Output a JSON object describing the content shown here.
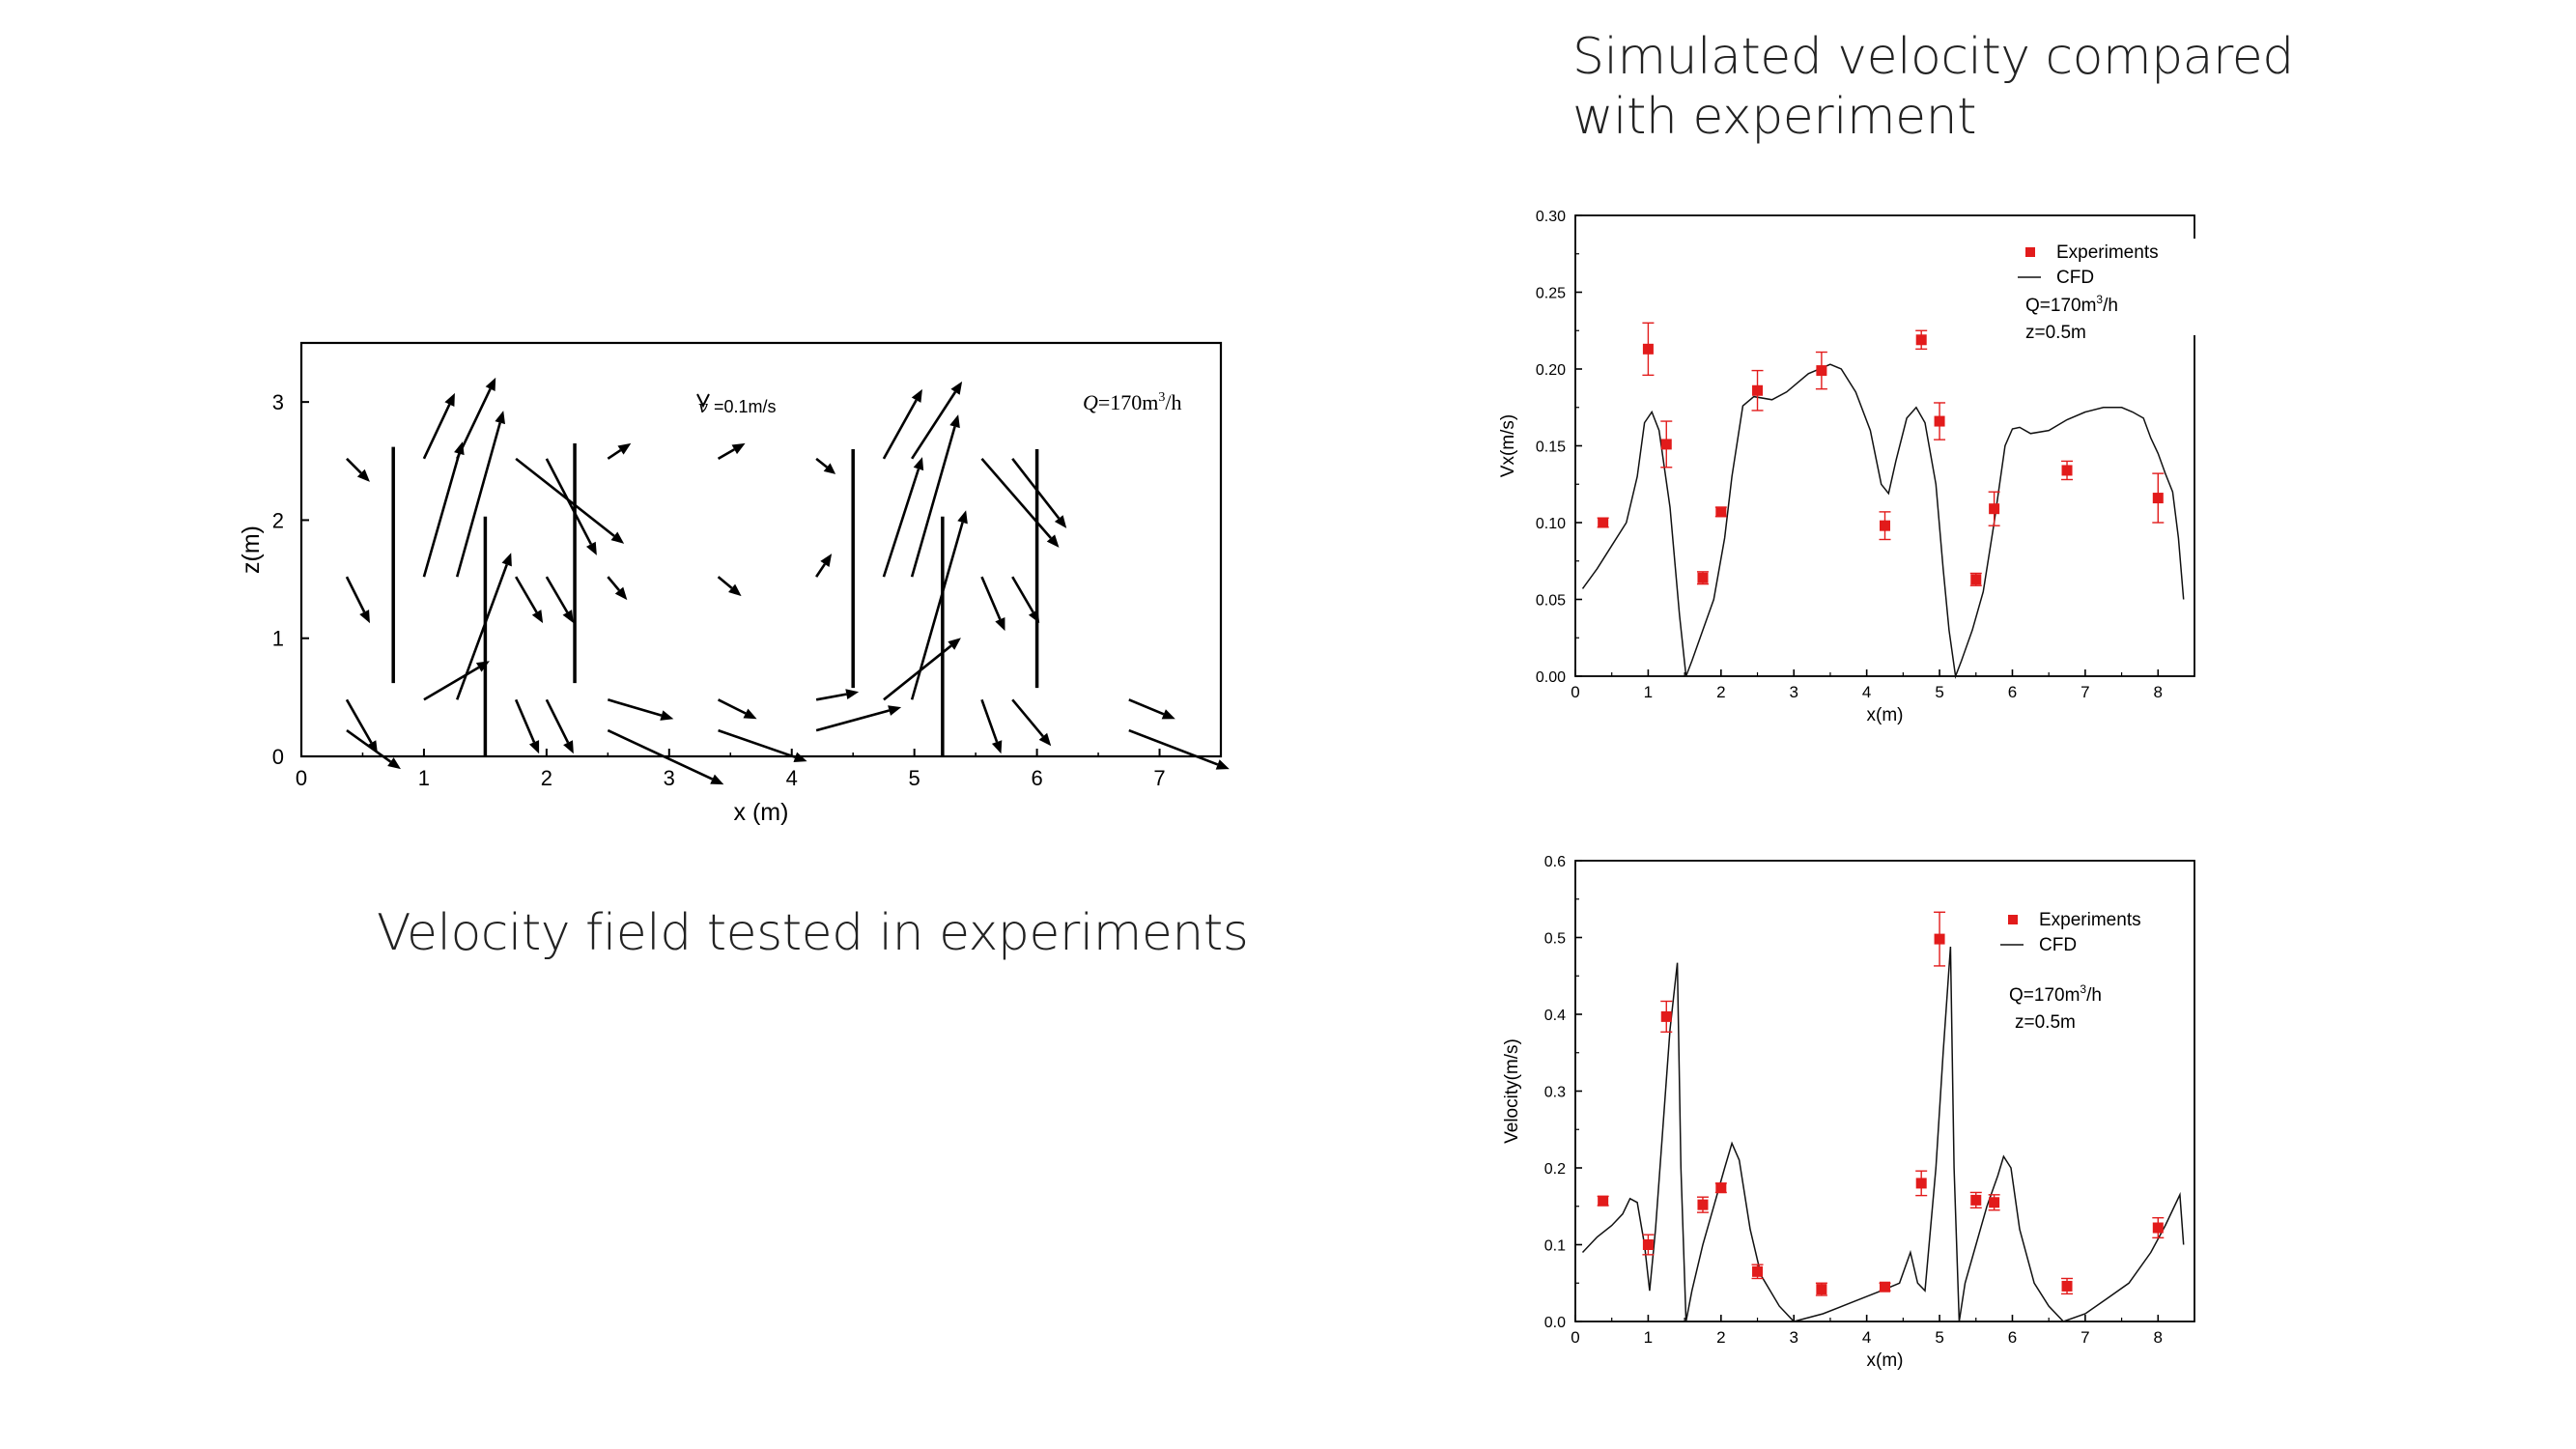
{
  "slide": {
    "right_title_line1": "Simulated velocity compared",
    "right_title_line2": "with experiment",
    "left_caption": "Velocity field tested in experiments"
  },
  "chart_data": [
    {
      "type": "scatter",
      "subtype": "vector-field",
      "xlabel": "x (m)",
      "ylabel": "z(m)",
      "xlim": [
        0,
        7.5
      ],
      "ylim": [
        0,
        3.5
      ],
      "xticks": [
        0,
        1,
        2,
        3,
        4,
        5,
        6,
        7
      ],
      "yticks": [
        0,
        1,
        2,
        3
      ],
      "annotations": {
        "scale": "=0.1m/s",
        "scale_symbol": "v",
        "q_symbol": "Q",
        "q_value": "=170m",
        "q_sup": "3",
        "q_unit": "/h"
      },
      "baffles": [
        {
          "x": 0.75,
          "z0": 0.62,
          "z1": 2.62
        },
        {
          "x": 1.5,
          "z0": 0.0,
          "z1": 2.03
        },
        {
          "x": 2.23,
          "z0": 0.62,
          "z1": 2.65
        },
        {
          "x": 4.5,
          "z0": 0.58,
          "z1": 2.6
        },
        {
          "x": 5.23,
          "z0": 0.0,
          "z1": 2.03
        },
        {
          "x": 6.0,
          "z0": 0.58,
          "z1": 2.6
        }
      ],
      "vectors": [
        {
          "x": 0.37,
          "z": 2.52,
          "u": 0.06,
          "w": -0.06
        },
        {
          "x": 1.0,
          "z": 2.52,
          "u": 0.08,
          "w": 0.17
        },
        {
          "x": 1.27,
          "z": 2.52,
          "u": 0.1,
          "w": 0.21
        },
        {
          "x": 1.75,
          "z": 2.52,
          "u": 0.28,
          "w": -0.22
        },
        {
          "x": 2.0,
          "z": 2.52,
          "u": 0.13,
          "w": -0.25
        },
        {
          "x": 2.5,
          "z": 2.52,
          "u": 0.06,
          "w": 0.04
        },
        {
          "x": 3.4,
          "z": 2.52,
          "u": 0.07,
          "w": 0.04
        },
        {
          "x": 4.2,
          "z": 2.52,
          "u": 0.05,
          "w": -0.04
        },
        {
          "x": 4.75,
          "z": 2.52,
          "u": 0.1,
          "w": 0.18
        },
        {
          "x": 4.98,
          "z": 2.52,
          "u": 0.13,
          "w": 0.2
        },
        {
          "x": 5.55,
          "z": 2.52,
          "u": 0.2,
          "w": -0.23
        },
        {
          "x": 5.8,
          "z": 2.52,
          "u": 0.14,
          "w": -0.18
        },
        {
          "x": 0.37,
          "z": 1.52,
          "u": 0.06,
          "w": -0.12
        },
        {
          "x": 1.0,
          "z": 1.52,
          "u": 0.1,
          "w": 0.35
        },
        {
          "x": 1.27,
          "z": 1.52,
          "u": 0.12,
          "w": 0.43
        },
        {
          "x": 1.75,
          "z": 1.52,
          "u": 0.07,
          "w": -0.12
        },
        {
          "x": 2.0,
          "z": 1.52,
          "u": 0.07,
          "w": -0.12
        },
        {
          "x": 2.5,
          "z": 1.52,
          "u": 0.05,
          "w": -0.06
        },
        {
          "x": 3.4,
          "z": 1.52,
          "u": 0.06,
          "w": -0.05
        },
        {
          "x": 4.2,
          "z": 1.52,
          "u": 0.04,
          "w": 0.06
        },
        {
          "x": 4.75,
          "z": 1.52,
          "u": 0.1,
          "w": 0.31
        },
        {
          "x": 4.98,
          "z": 1.52,
          "u": 0.12,
          "w": 0.42
        },
        {
          "x": 5.55,
          "z": 1.52,
          "u": 0.06,
          "w": -0.14
        },
        {
          "x": 5.8,
          "z": 1.52,
          "u": 0.07,
          "w": -0.12
        },
        {
          "x": 0.37,
          "z": 0.48,
          "u": 0.08,
          "w": -0.14
        },
        {
          "x": 1.0,
          "z": 0.48,
          "u": 0.17,
          "w": 0.1
        },
        {
          "x": 1.27,
          "z": 0.48,
          "u": 0.14,
          "w": 0.38
        },
        {
          "x": 1.75,
          "z": 0.48,
          "u": 0.06,
          "w": -0.14
        },
        {
          "x": 2.0,
          "z": 0.48,
          "u": 0.07,
          "w": -0.14
        },
        {
          "x": 2.5,
          "z": 0.48,
          "u": 0.17,
          "w": -0.05
        },
        {
          "x": 3.4,
          "z": 0.48,
          "u": 0.1,
          "w": -0.05
        },
        {
          "x": 4.2,
          "z": 0.48,
          "u": 0.11,
          "w": 0.02
        },
        {
          "x": 4.75,
          "z": 0.48,
          "u": 0.2,
          "w": 0.16
        },
        {
          "x": 4.98,
          "z": 0.48,
          "u": 0.14,
          "w": 0.49
        },
        {
          "x": 5.55,
          "z": 0.48,
          "u": 0.05,
          "w": -0.14
        },
        {
          "x": 5.8,
          "z": 0.48,
          "u": 0.1,
          "w": -0.12
        },
        {
          "x": 6.75,
          "z": 0.48,
          "u": 0.12,
          "w": -0.05
        },
        {
          "x": 0.37,
          "z": 0.22,
          "u": 0.14,
          "w": -0.1
        },
        {
          "x": 2.5,
          "z": 0.22,
          "u": 0.3,
          "w": -0.14
        },
        {
          "x": 3.4,
          "z": 0.22,
          "u": 0.23,
          "w": -0.08
        },
        {
          "x": 4.2,
          "z": 0.22,
          "u": 0.22,
          "w": 0.06
        },
        {
          "x": 6.75,
          "z": 0.22,
          "u": 0.26,
          "w": -0.1
        }
      ]
    },
    {
      "type": "line",
      "ylabel": "Vx(m/s)",
      "xlabel": "x(m)",
      "xlim": [
        0,
        8.5
      ],
      "ylim": [
        0,
        0.3
      ],
      "xticks": [
        0,
        1,
        2,
        3,
        4,
        5,
        6,
        7,
        8
      ],
      "yticks": [
        0.0,
        0.05,
        0.1,
        0.15,
        0.2,
        0.25,
        0.3
      ],
      "ytick_labels": [
        "0.00",
        "0.05",
        "0.10",
        "0.15",
        "0.20",
        "0.25",
        "0.30"
      ],
      "legend": [
        "Experiments",
        "CFD"
      ],
      "annotation": {
        "q": "Q=170m",
        "q_sup": "3",
        "q_unit": "/h",
        "z": "z=0.5m"
      },
      "experiments": [
        {
          "x": 0.38,
          "y": 0.1,
          "err": 0.003
        },
        {
          "x": 1.0,
          "y": 0.213,
          "err": 0.017
        },
        {
          "x": 1.25,
          "y": 0.151,
          "err": 0.015
        },
        {
          "x": 1.75,
          "y": 0.064,
          "err": 0.004
        },
        {
          "x": 2.0,
          "y": 0.107,
          "err": 0.003
        },
        {
          "x": 2.5,
          "y": 0.186,
          "err": 0.013
        },
        {
          "x": 3.38,
          "y": 0.199,
          "err": 0.012
        },
        {
          "x": 4.25,
          "y": 0.098,
          "err": 0.009
        },
        {
          "x": 4.75,
          "y": 0.219,
          "err": 0.006
        },
        {
          "x": 5.0,
          "y": 0.166,
          "err": 0.012
        },
        {
          "x": 5.5,
          "y": 0.063,
          "err": 0.004
        },
        {
          "x": 5.75,
          "y": 0.109,
          "err": 0.011
        },
        {
          "x": 6.75,
          "y": 0.134,
          "err": 0.006
        },
        {
          "x": 8.0,
          "y": 0.116,
          "err": 0.016
        }
      ],
      "cfd": [
        [
          0.1,
          0.057
        ],
        [
          0.3,
          0.07
        ],
        [
          0.5,
          0.085
        ],
        [
          0.7,
          0.1
        ],
        [
          0.85,
          0.13
        ],
        [
          0.95,
          0.165
        ],
        [
          1.05,
          0.172
        ],
        [
          1.15,
          0.16
        ],
        [
          1.3,
          0.11
        ],
        [
          1.43,
          0.04
        ],
        [
          1.52,
          0.0
        ],
        [
          1.6,
          0.01
        ],
        [
          1.75,
          0.03
        ],
        [
          1.9,
          0.05
        ],
        [
          2.05,
          0.09
        ],
        [
          2.15,
          0.13
        ],
        [
          2.3,
          0.176
        ],
        [
          2.45,
          0.182
        ],
        [
          2.7,
          0.18
        ],
        [
          2.9,
          0.185
        ],
        [
          3.2,
          0.197
        ],
        [
          3.5,
          0.203
        ],
        [
          3.65,
          0.2
        ],
        [
          3.85,
          0.185
        ],
        [
          4.05,
          0.16
        ],
        [
          4.2,
          0.125
        ],
        [
          4.3,
          0.119
        ],
        [
          4.4,
          0.14
        ],
        [
          4.55,
          0.168
        ],
        [
          4.68,
          0.175
        ],
        [
          4.8,
          0.165
        ],
        [
          4.95,
          0.125
        ],
        [
          5.05,
          0.07
        ],
        [
          5.13,
          0.03
        ],
        [
          5.22,
          0.0
        ],
        [
          5.3,
          0.01
        ],
        [
          5.45,
          0.03
        ],
        [
          5.6,
          0.055
        ],
        [
          5.75,
          0.1
        ],
        [
          5.9,
          0.15
        ],
        [
          6.0,
          0.161
        ],
        [
          6.1,
          0.162
        ],
        [
          6.25,
          0.158
        ],
        [
          6.5,
          0.16
        ],
        [
          6.75,
          0.167
        ],
        [
          7.0,
          0.172
        ],
        [
          7.25,
          0.175
        ],
        [
          7.5,
          0.175
        ],
        [
          7.65,
          0.172
        ],
        [
          7.8,
          0.168
        ],
        [
          7.9,
          0.155
        ],
        [
          8.0,
          0.145
        ],
        [
          8.1,
          0.132
        ],
        [
          8.2,
          0.12
        ],
        [
          8.28,
          0.09
        ],
        [
          8.35,
          0.05
        ]
      ]
    },
    {
      "type": "line",
      "ylabel": "Velocity(m/s)",
      "xlabel": "x(m)",
      "xlim": [
        0,
        8.5
      ],
      "ylim": [
        0,
        0.6
      ],
      "xticks": [
        0,
        1,
        2,
        3,
        4,
        5,
        6,
        7,
        8
      ],
      "yticks": [
        0.0,
        0.1,
        0.2,
        0.3,
        0.4,
        0.5,
        0.6
      ],
      "ytick_labels": [
        "0.0",
        "0.1",
        "0.2",
        "0.3",
        "0.4",
        "0.5",
        "0.6"
      ],
      "legend": [
        "Experiments",
        "CFD"
      ],
      "annotation": {
        "q": "Q=170m",
        "q_sup": "3",
        "q_unit": "/h",
        "z": "z=0.5m"
      },
      "experiments": [
        {
          "x": 0.38,
          "y": 0.157,
          "err": 0.006
        },
        {
          "x": 1.0,
          "y": 0.1,
          "err": 0.013
        },
        {
          "x": 1.25,
          "y": 0.397,
          "err": 0.02
        },
        {
          "x": 1.75,
          "y": 0.152,
          "err": 0.01
        },
        {
          "x": 2.0,
          "y": 0.174,
          "err": 0.006
        },
        {
          "x": 2.5,
          "y": 0.065,
          "err": 0.009
        },
        {
          "x": 3.38,
          "y": 0.042,
          "err": 0.008
        },
        {
          "x": 4.25,
          "y": 0.045,
          "err": 0.005
        },
        {
          "x": 4.75,
          "y": 0.18,
          "err": 0.016
        },
        {
          "x": 5.0,
          "y": 0.498,
          "err": 0.035
        },
        {
          "x": 5.5,
          "y": 0.158,
          "err": 0.01
        },
        {
          "x": 5.75,
          "y": 0.155,
          "err": 0.01
        },
        {
          "x": 6.75,
          "y": 0.046,
          "err": 0.01
        },
        {
          "x": 8.0,
          "y": 0.122,
          "err": 0.013
        }
      ],
      "cfd": [
        [
          0.1,
          0.09
        ],
        [
          0.3,
          0.11
        ],
        [
          0.5,
          0.125
        ],
        [
          0.65,
          0.14
        ],
        [
          0.75,
          0.16
        ],
        [
          0.85,
          0.155
        ],
        [
          0.95,
          0.1
        ],
        [
          1.02,
          0.04
        ],
        [
          1.1,
          0.12
        ],
        [
          1.2,
          0.25
        ],
        [
          1.3,
          0.38
        ],
        [
          1.4,
          0.467
        ],
        [
          1.45,
          0.2
        ],
        [
          1.52,
          0.0
        ],
        [
          1.6,
          0.04
        ],
        [
          1.75,
          0.1
        ],
        [
          1.9,
          0.15
        ],
        [
          2.05,
          0.2
        ],
        [
          2.15,
          0.232
        ],
        [
          2.25,
          0.21
        ],
        [
          2.4,
          0.12
        ],
        [
          2.55,
          0.06
        ],
        [
          2.8,
          0.02
        ],
        [
          3.0,
          0.0
        ],
        [
          3.4,
          0.01
        ],
        [
          3.8,
          0.025
        ],
        [
          4.2,
          0.04
        ],
        [
          4.45,
          0.05
        ],
        [
          4.6,
          0.09
        ],
        [
          4.7,
          0.05
        ],
        [
          4.8,
          0.04
        ],
        [
          4.95,
          0.2
        ],
        [
          5.05,
          0.35
        ],
        [
          5.15,
          0.488
        ],
        [
          5.2,
          0.2
        ],
        [
          5.27,
          0.0
        ],
        [
          5.35,
          0.05
        ],
        [
          5.5,
          0.1
        ],
        [
          5.65,
          0.15
        ],
        [
          5.8,
          0.19
        ],
        [
          5.88,
          0.215
        ],
        [
          5.98,
          0.2
        ],
        [
          6.1,
          0.12
        ],
        [
          6.3,
          0.05
        ],
        [
          6.5,
          0.02
        ],
        [
          6.7,
          0.0
        ],
        [
          7.0,
          0.01
        ],
        [
          7.3,
          0.03
        ],
        [
          7.6,
          0.05
        ],
        [
          7.9,
          0.09
        ],
        [
          8.1,
          0.125
        ],
        [
          8.3,
          0.165
        ],
        [
          8.35,
          0.1
        ]
      ]
    }
  ]
}
